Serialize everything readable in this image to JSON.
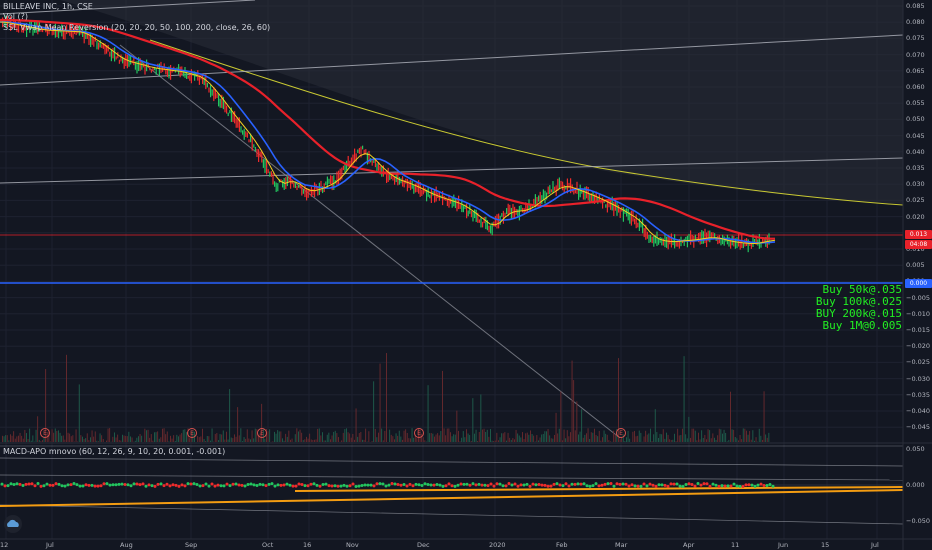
{
  "header": {
    "title_line": "BILLEAVE INC, 1h, CSE",
    "indicator_1": "Vol (?)",
    "indicator_2": "SSL Vwap Mean Reversion (20, 20, 20, 50, 100, 200, close, 26, 60)",
    "macd_line": "MACD-APO mnovo (60, 12, 26, 9, 10, 20, 0.001, -0.001)"
  },
  "notes": [
    "Buy 50k@.035",
    "Buy 100k@.025",
    "BUY 200k@.015",
    "Buy 1M@0.005"
  ],
  "price_axis": {
    "ticks": [
      "0.085",
      "0.080",
      "0.075",
      "0.070",
      "0.065",
      "0.060",
      "0.055",
      "0.050",
      "0.045",
      "0.040",
      "0.035",
      "0.030",
      "0.025",
      "0.020",
      "0.015",
      "0.010",
      "0.005",
      "0.000",
      "−0.005",
      "−0.010",
      "−0.015",
      "−0.020",
      "−0.025",
      "−0.030",
      "−0.035",
      "−0.040",
      "−0.045"
    ],
    "tag_red": "0.013",
    "tag_time": "04:08",
    "tag_blue": "0.000"
  },
  "macd_axis": {
    "ticks": [
      "0.050",
      "0.000",
      "−0.050"
    ]
  },
  "time_axis": {
    "ticks": [
      "12",
      "Jul",
      "Aug",
      "Sep",
      "Oct",
      "16",
      "Nov",
      "Dec",
      "2020",
      "Feb",
      "Mar",
      "Apr",
      "11",
      "Jun",
      "15",
      "Jul"
    ]
  },
  "events": [
    "E",
    "E",
    "E",
    "E",
    "E"
  ],
  "colors": {
    "background": "#131722",
    "up": "#22c55e",
    "down": "#ef2b2b",
    "red_line": "#e8212a",
    "blue_line": "#2962ff",
    "yellow_curve": "#c8c832",
    "orange": "#f39c12"
  }
}
